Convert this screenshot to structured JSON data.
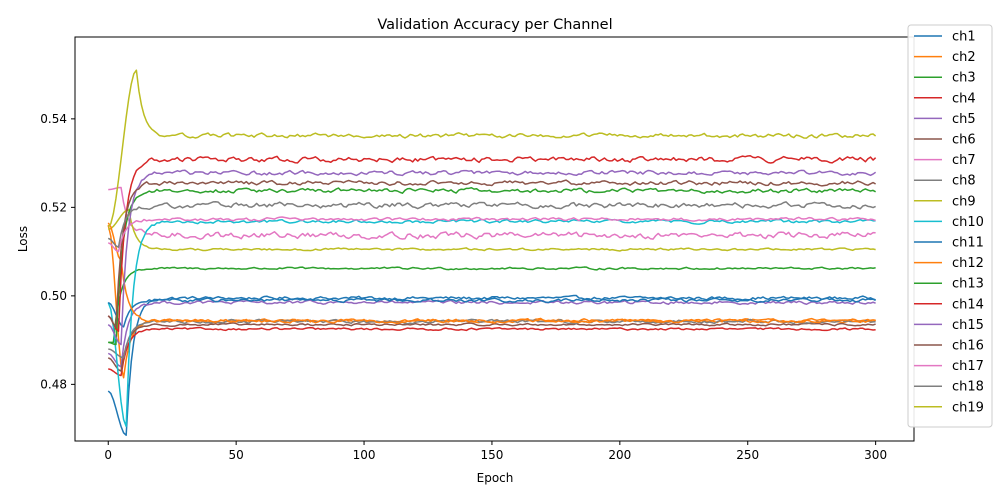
{
  "chart_data": {
    "type": "line",
    "title": "Validation Accuracy per Channel",
    "xlabel": "Epoch",
    "ylabel": "Loss",
    "xlim": [
      -13,
      315
    ],
    "ylim": [
      0.4672,
      0.5585
    ],
    "xticks": [
      0,
      50,
      100,
      150,
      200,
      250,
      300
    ],
    "yticks": [
      0.48,
      0.5,
      0.52,
      0.54
    ],
    "ytick_labels": [
      "0.48",
      "0.50",
      "0.52",
      "0.54"
    ],
    "grid": false,
    "legend_position": "right-outside",
    "epochs": 300,
    "series": [
      {
        "name": "ch1",
        "color": "#1f77b4",
        "start": 0.4785,
        "extreme": 0.4685,
        "extreme_epoch": 7,
        "plateau": 0.4995,
        "noise": 0.0003
      },
      {
        "name": "ch2",
        "color": "#ff7f0e",
        "start": 0.516,
        "extreme": 0.4815,
        "extreme_epoch": 6,
        "plateau": 0.4944,
        "noise": 0.0003
      },
      {
        "name": "ch3",
        "color": "#2ca02c",
        "start": 0.4895,
        "extreme": 0.4895,
        "extreme_epoch": 2,
        "plateau": 0.5062,
        "noise": 0.0002
      },
      {
        "name": "ch4",
        "color": "#d62728",
        "start": 0.4835,
        "extreme": 0.482,
        "extreme_epoch": 5,
        "plateau": 0.4925,
        "noise": 0.0002
      },
      {
        "name": "ch5",
        "color": "#9467bd",
        "start": 0.487,
        "extreme": 0.484,
        "extreme_epoch": 5,
        "plateau": 0.4985,
        "noise": 0.0003
      },
      {
        "name": "ch6",
        "color": "#8c564b",
        "start": 0.486,
        "extreme": 0.483,
        "extreme_epoch": 5,
        "plateau": 0.4935,
        "noise": 0.0002
      },
      {
        "name": "ch7",
        "color": "#e377c2",
        "start": 0.524,
        "extreme": 0.5245,
        "extreme_epoch": 5,
        "plateau": 0.5137,
        "noise": 0.0006
      },
      {
        "name": "ch8",
        "color": "#7f7f7f",
        "start": 0.488,
        "extreme": 0.486,
        "extreme_epoch": 6,
        "plateau": 0.4942,
        "noise": 0.0003
      },
      {
        "name": "ch9",
        "color": "#bcbd22",
        "start": 0.515,
        "extreme": 0.5195,
        "extreme_epoch": 8,
        "plateau": 0.5105,
        "noise": 0.0002
      },
      {
        "name": "ch10",
        "color": "#17becf",
        "start": 0.4985,
        "extreme": 0.4705,
        "extreme_epoch": 7,
        "plateau": 0.5168,
        "noise": 0.0003
      },
      {
        "name": "ch11",
        "color": "#1f77b4",
        "start": 0.4985,
        "extreme": 0.493,
        "extreme_epoch": 6,
        "plateau": 0.499,
        "noise": 0.0003
      },
      {
        "name": "ch12",
        "color": "#ff7f0e",
        "start": 0.5165,
        "extreme": 0.508,
        "extreme_epoch": 5,
        "plateau": 0.4943,
        "noise": 0.0003
      },
      {
        "name": "ch13",
        "color": "#2ca02c",
        "start": 0.4895,
        "extreme": 0.489,
        "extreme_epoch": 3,
        "plateau": 0.5238,
        "noise": 0.0004
      },
      {
        "name": "ch14",
        "color": "#d62728",
        "start": 0.4955,
        "extreme": 0.492,
        "extreme_epoch": 4,
        "plateau": 0.5308,
        "noise": 0.0005
      },
      {
        "name": "ch15",
        "color": "#9467bd",
        "start": 0.4935,
        "extreme": 0.489,
        "extreme_epoch": 5,
        "plateau": 0.5278,
        "noise": 0.0004
      },
      {
        "name": "ch16",
        "color": "#8c564b",
        "start": 0.4955,
        "extreme": 0.493,
        "extreme_epoch": 3,
        "plateau": 0.5255,
        "noise": 0.0004
      },
      {
        "name": "ch17",
        "color": "#e377c2",
        "start": 0.512,
        "extreme": 0.51,
        "extreme_epoch": 4,
        "plateau": 0.5173,
        "noise": 0.0003
      },
      {
        "name": "ch18",
        "color": "#7f7f7f",
        "start": 0.513,
        "extreme": 0.511,
        "extreme_epoch": 4,
        "plateau": 0.5205,
        "noise": 0.0005
      },
      {
        "name": "ch19",
        "color": "#bcbd22",
        "start": 0.5155,
        "extreme": 0.551,
        "extreme_epoch": 11,
        "plateau": 0.5362,
        "noise": 0.0004
      }
    ]
  }
}
